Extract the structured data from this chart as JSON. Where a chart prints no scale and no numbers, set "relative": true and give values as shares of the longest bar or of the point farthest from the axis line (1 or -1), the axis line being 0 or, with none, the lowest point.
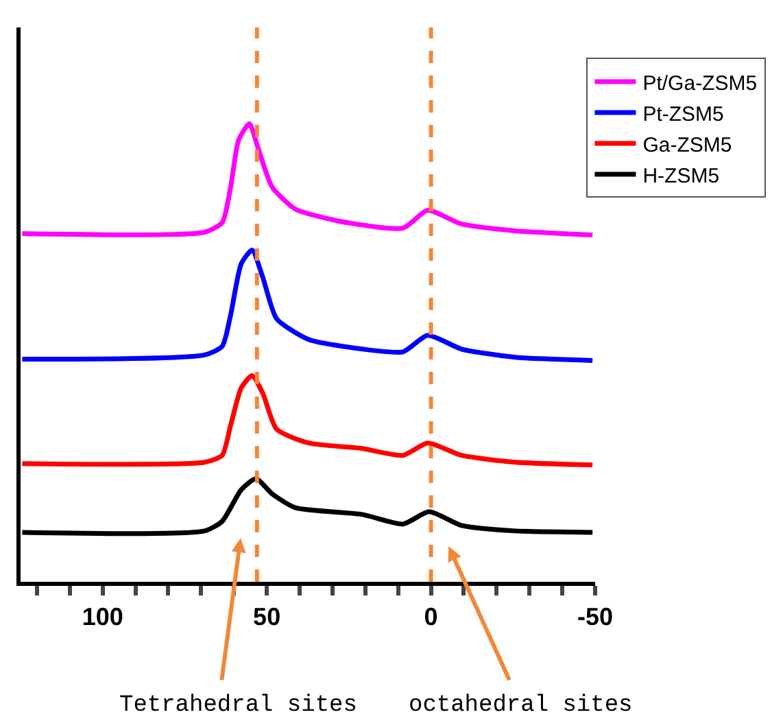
{
  "chart_data": {
    "type": "line",
    "relative": true,
    "xlim": [
      125,
      -50
    ],
    "xticks": [
      {
        "value": 120,
        "label": null
      },
      {
        "value": 110,
        "label": null
      },
      100,
      {
        "value": 90,
        "label": null
      },
      {
        "value": 80,
        "label": null
      },
      {
        "value": 70,
        "label": null
      },
      {
        "value": 60,
        "label": null
      },
      50,
      {
        "value": 40,
        "label": null
      },
      {
        "value": 30,
        "label": null
      },
      {
        "value": 20,
        "label": null
      },
      {
        "value": 10,
        "label": null
      },
      0,
      {
        "value": -10,
        "label": null
      },
      {
        "value": -20,
        "label": null
      },
      {
        "value": -30,
        "label": null
      },
      {
        "value": -40,
        "label": null
      },
      -50
    ],
    "tick_labels": "x",
    "legend": "top right",
    "marker": "none",
    "line_style": "solid",
    "series": [
      {
        "name": "Pt/Ga-ZSM5",
        "color": "#ff00ff",
        "x": [
          124.5,
          69,
          63.6,
          61,
          58.6,
          55.3,
          52.5,
          48.4,
          41.4,
          27.8,
          8.5,
          1,
          -9.3,
          -25.7,
          -49.2
        ],
        "values": [
          0.76,
          0.763,
          0.784,
          0.862,
          0.964,
          1.0,
          0.943,
          0.862,
          0.814,
          0.787,
          0.772,
          0.811,
          0.781,
          0.766,
          0.757
        ]
      },
      {
        "name": "Pt-ZSM5",
        "color": "#0000ff",
        "x": [
          124.5,
          69,
          63.6,
          61,
          57.8,
          54.5,
          51.2,
          47,
          37.3,
          20.9,
          8.5,
          1,
          -9.3,
          -25.7,
          -49.2
        ],
        "values": [
          0.486,
          0.495,
          0.514,
          0.583,
          0.694,
          0.724,
          0.664,
          0.574,
          0.529,
          0.508,
          0.502,
          0.538,
          0.508,
          0.49,
          0.483
        ]
      },
      {
        "name": "Ga-ZSM5",
        "color": "#ff0000",
        "x": [
          124.5,
          69,
          63.6,
          61,
          57.8,
          54.5,
          51.2,
          47,
          37.3,
          20.9,
          8.5,
          1,
          -9.3,
          -25.7,
          -49.2
        ],
        "values": [
          0.258,
          0.261,
          0.276,
          0.342,
          0.423,
          0.45,
          0.411,
          0.333,
          0.303,
          0.291,
          0.276,
          0.303,
          0.276,
          0.261,
          0.255
        ]
      },
      {
        "name": "H-ZSM5",
        "color": "#000000",
        "x": [
          124.5,
          69,
          63.6,
          57.8,
          53.3,
          48.4,
          41.4,
          20.9,
          8.5,
          0.6,
          -9.3,
          -25.7,
          -49.2
        ],
        "values": [
          0.108,
          0.111,
          0.132,
          0.201,
          0.225,
          0.192,
          0.162,
          0.147,
          0.126,
          0.153,
          0.123,
          0.111,
          0.108
        ]
      }
    ],
    "ref_lines": [
      {
        "axis": "x",
        "value": 53,
        "color": "#f0883a",
        "line_style": "dashed"
      },
      {
        "axis": "x",
        "value": 0,
        "color": "#f0883a",
        "line_style": "dashed"
      }
    ],
    "annotations": [
      "Tetrahedral sites",
      "octahedral sites"
    ]
  }
}
